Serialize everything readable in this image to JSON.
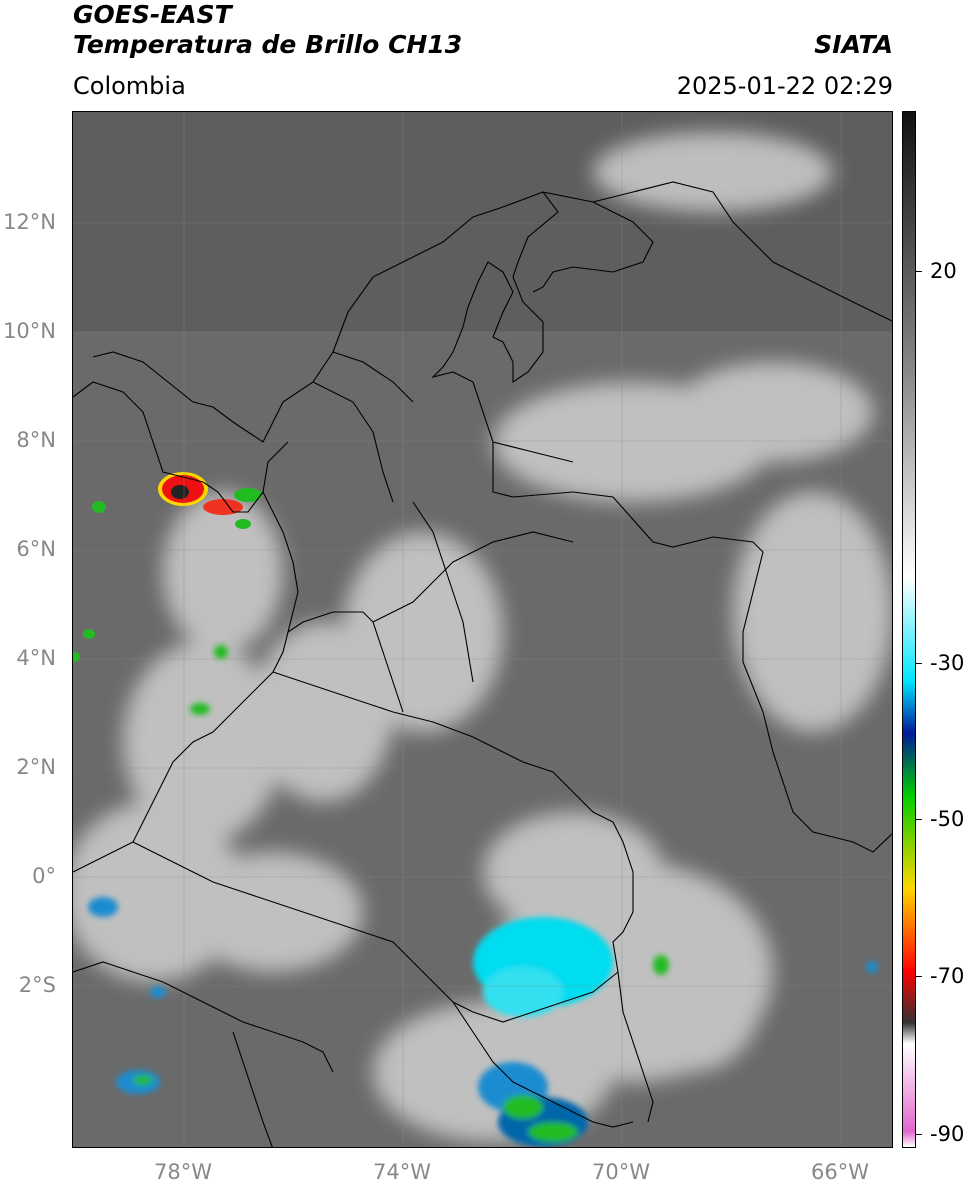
{
  "header": {
    "satellite": "GOES-EAST",
    "product": "Temperatura de Brillo CH13",
    "agency": "SIATA",
    "region": "Colombia",
    "datetime": "2025-01-22 02:29"
  },
  "map": {
    "lat_labels": [
      "12°N",
      "10°N",
      "8°N",
      "6°N",
      "4°N",
      "2°N",
      "0°",
      "2°S"
    ],
    "lon_labels": [
      "78°W",
      "74°W",
      "70°W",
      "66°W"
    ]
  },
  "colorbar": {
    "unit_values": [
      20,
      -30,
      -50,
      -70,
      -90
    ],
    "labels": [
      "20",
      "-30",
      "-50",
      "-70",
      "-90"
    ],
    "stops": [
      "#ffffff",
      "#e066cc",
      "#ffffff",
      "#333333",
      "#ff0000",
      "#ffd700",
      "#00cc00",
      "#001a99",
      "#00e5ff",
      "#ffffff",
      "#888888",
      "#111111"
    ]
  }
}
